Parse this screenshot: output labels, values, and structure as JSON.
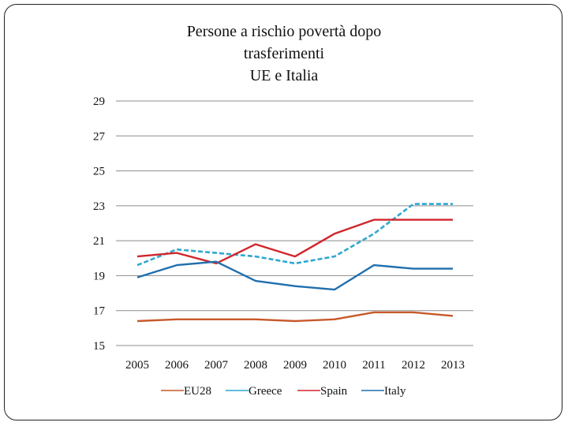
{
  "chart_data": {
    "type": "line",
    "title_lines": [
      "Persone a rischio povertà  dopo",
      "trasferimenti",
      "UE e Italia"
    ],
    "xlabel": "",
    "ylabel": "",
    "categories": [
      "2005",
      "2006",
      "2007",
      "2008",
      "2009",
      "2010",
      "2011",
      "2012",
      "2013"
    ],
    "yticks": [
      29,
      27,
      25,
      23,
      21,
      19,
      17,
      15
    ],
    "ylim": [
      15,
      29
    ],
    "grid": true,
    "legend_position": "bottom",
    "series": [
      {
        "name": "EU28",
        "color": "#C65A2A",
        "dash": false,
        "values": [
          16.4,
          16.5,
          16.5,
          16.5,
          16.4,
          16.5,
          16.9,
          16.9,
          16.7
        ]
      },
      {
        "name": "Greece",
        "color": "#2EA8D0",
        "dash": true,
        "values": [
          19.6,
          20.5,
          20.3,
          20.1,
          19.7,
          20.1,
          21.4,
          23.1,
          23.1
        ]
      },
      {
        "name": "Spain",
        "color": "#D0262B",
        "dash": false,
        "values": [
          20.1,
          20.3,
          19.7,
          20.8,
          20.1,
          21.4,
          22.2,
          22.2,
          22.2
        ]
      },
      {
        "name": "Italy",
        "color": "#1F6FAE",
        "dash": false,
        "values": [
          18.9,
          19.6,
          19.8,
          18.7,
          18.4,
          18.2,
          19.6,
          19.4,
          19.4
        ]
      }
    ]
  }
}
